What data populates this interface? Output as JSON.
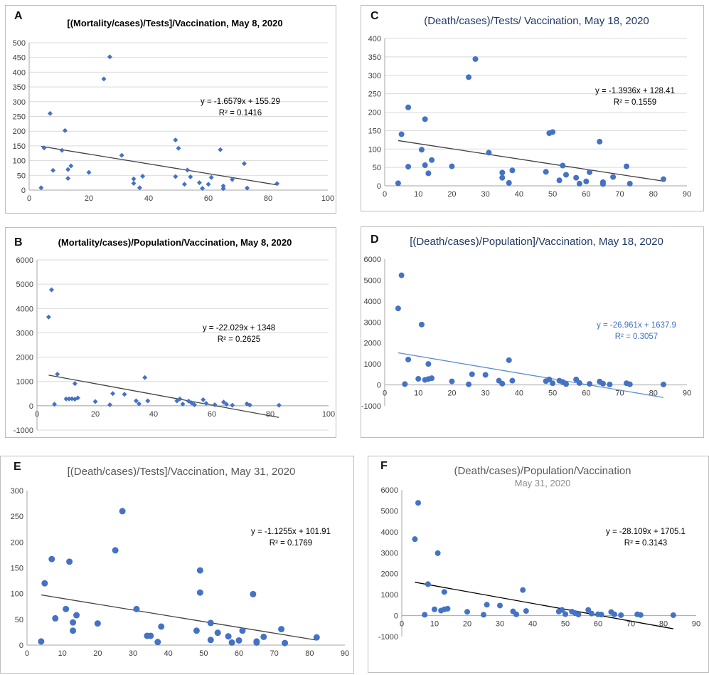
{
  "chart_data": [
    {
      "id": "A",
      "panel_letter": "A",
      "type": "scatter",
      "title": "[(Mortality/cases)/Tests]/Vaccination, May 8, 2020",
      "title_style": "bold",
      "title_color": "#000000",
      "marker": "diamond",
      "point_color": "#4472C4",
      "trend_color": "#404040",
      "xlim": [
        0,
        100
      ],
      "xticks": [
        0,
        20,
        40,
        60,
        80,
        100
      ],
      "ylim": [
        0,
        500
      ],
      "yticks": [
        0,
        50,
        100,
        150,
        200,
        250,
        300,
        350,
        400,
        450,
        500
      ],
      "grid": true,
      "annotation_color": "#000000",
      "equation": "y = -1.6579x + 155.29",
      "r2": "R² = 0.1416",
      "trendline": {
        "slope": -1.6579,
        "intercept": 155.29,
        "x_range": [
          4,
          83
        ]
      },
      "points": [
        [
          4,
          8
        ],
        [
          5,
          143
        ],
        [
          7,
          260
        ],
        [
          8,
          67
        ],
        [
          11,
          135
        ],
        [
          12,
          202
        ],
        [
          13,
          70
        ],
        [
          13,
          40
        ],
        [
          14,
          82
        ],
        [
          20,
          60
        ],
        [
          25,
          377
        ],
        [
          27,
          452
        ],
        [
          31,
          118
        ],
        [
          35,
          23
        ],
        [
          35,
          38
        ],
        [
          37,
          8
        ],
        [
          38,
          47
        ],
        [
          49,
          46
        ],
        [
          49,
          170
        ],
        [
          50,
          142
        ],
        [
          52,
          20
        ],
        [
          53,
          68
        ],
        [
          54,
          45
        ],
        [
          57,
          25
        ],
        [
          58,
          6
        ],
        [
          60,
          20
        ],
        [
          61,
          43
        ],
        [
          64,
          137
        ],
        [
          65,
          14
        ],
        [
          65,
          5
        ],
        [
          68,
          36
        ],
        [
          72,
          90
        ],
        [
          73,
          7
        ],
        [
          83,
          22
        ]
      ]
    },
    {
      "id": "B",
      "panel_letter": "B",
      "type": "scatter",
      "title": "(Mortality/cases)/Population/Vaccination, May 8, 2020",
      "title_style": "bold",
      "title_color": "#000000",
      "marker": "diamond",
      "point_color": "#4472C4",
      "trend_color": "#404040",
      "xlim": [
        0,
        100
      ],
      "xticks": [
        0,
        20,
        40,
        60,
        80,
        100
      ],
      "ylim": [
        -1000,
        6000
      ],
      "yticks": [
        -1000,
        0,
        1000,
        2000,
        3000,
        4000,
        5000,
        6000
      ],
      "grid": true,
      "annotation_color": "#000000",
      "equation": "y = -22.029x + 1348",
      "r2": "R² = 0.2625",
      "trendline": {
        "slope": -22.029,
        "intercept": 1348,
        "x_range": [
          4,
          83
        ]
      },
      "points": [
        [
          4,
          3650
        ],
        [
          5,
          4770
        ],
        [
          6,
          60
        ],
        [
          7,
          1300
        ],
        [
          10,
          280
        ],
        [
          11,
          280
        ],
        [
          12,
          290
        ],
        [
          13,
          910
        ],
        [
          13,
          270
        ],
        [
          14,
          320
        ],
        [
          20,
          170
        ],
        [
          25,
          40
        ],
        [
          26,
          500
        ],
        [
          30,
          470
        ],
        [
          34,
          200
        ],
        [
          35,
          80
        ],
        [
          37,
          1160
        ],
        [
          38,
          200
        ],
        [
          48,
          200
        ],
        [
          49,
          280
        ],
        [
          50,
          70
        ],
        [
          52,
          190
        ],
        [
          53,
          120
        ],
        [
          54,
          40
        ],
        [
          57,
          250
        ],
        [
          58,
          100
        ],
        [
          61,
          40
        ],
        [
          64,
          150
        ],
        [
          65,
          60
        ],
        [
          67,
          20
        ],
        [
          72,
          80
        ],
        [
          73,
          30
        ],
        [
          83,
          20
        ]
      ]
    },
    {
      "id": "C",
      "panel_letter": "C",
      "type": "scatter",
      "title": "(Death/cases)/Tests/ Vaccination, May 18, 2020",
      "title_style": "normal",
      "title_color": "#1F3864",
      "marker": "circle",
      "point_color": "#4472C4",
      "trend_color": "#404040",
      "xlim": [
        0,
        90
      ],
      "xticks": [
        0,
        10,
        20,
        30,
        40,
        50,
        60,
        70,
        80,
        90
      ],
      "ylim": [
        0,
        400
      ],
      "yticks": [
        0,
        50,
        100,
        150,
        200,
        250,
        300,
        350,
        400
      ],
      "grid": true,
      "annotation_color": "#000000",
      "equation": "y = -1.3936x + 128.41",
      "r2": "R² = 0.1559",
      "trendline": {
        "slope": -1.3936,
        "intercept": 128.41,
        "x_range": [
          4,
          83
        ]
      },
      "points": [
        [
          4,
          7
        ],
        [
          5,
          140
        ],
        [
          7,
          213
        ],
        [
          7,
          52
        ],
        [
          11,
          98
        ],
        [
          12,
          181
        ],
        [
          12,
          56
        ],
        [
          13,
          34
        ],
        [
          14,
          70
        ],
        [
          20,
          53
        ],
        [
          25,
          295
        ],
        [
          27,
          344
        ],
        [
          31,
          90
        ],
        [
          35,
          22
        ],
        [
          35,
          36
        ],
        [
          37,
          8
        ],
        [
          38,
          42
        ],
        [
          48,
          38
        ],
        [
          49,
          143
        ],
        [
          50,
          146
        ],
        [
          52,
          15
        ],
        [
          53,
          55
        ],
        [
          54,
          30
        ],
        [
          57,
          22
        ],
        [
          58,
          6
        ],
        [
          60,
          12
        ],
        [
          61,
          37
        ],
        [
          64,
          120
        ],
        [
          65,
          10
        ],
        [
          65,
          5
        ],
        [
          68,
          24
        ],
        [
          72,
          53
        ],
        [
          73,
          6
        ],
        [
          83,
          18
        ]
      ]
    },
    {
      "id": "D",
      "panel_letter": "D",
      "type": "scatter",
      "title": "[(Death/cases)/Population]/Vaccination, May 18, 2020",
      "title_style": "normal",
      "title_color": "#1F3864",
      "marker": "circle",
      "point_color": "#4472C4",
      "trend_color": "#5B8FD0",
      "xlim": [
        0,
        90
      ],
      "xticks": [
        0,
        10,
        20,
        30,
        40,
        50,
        60,
        70,
        80,
        90
      ],
      "ylim": [
        -1000,
        6000
      ],
      "yticks": [
        -1000,
        0,
        1000,
        2000,
        3000,
        4000,
        5000,
        6000
      ],
      "grid": false,
      "annotation_color": "#4472C4",
      "equation": "y = -26.961x + 1637.9",
      "r2": "R² = 0.3057",
      "trendline": {
        "slope": -26.961,
        "intercept": 1637.9,
        "x_range": [
          4,
          83
        ]
      },
      "points": [
        [
          4,
          3650
        ],
        [
          5,
          5230
        ],
        [
          6,
          40
        ],
        [
          7,
          1210
        ],
        [
          10,
          290
        ],
        [
          11,
          2880
        ],
        [
          12,
          240
        ],
        [
          13,
          1000
        ],
        [
          13,
          280
        ],
        [
          14,
          320
        ],
        [
          20,
          170
        ],
        [
          25,
          30
        ],
        [
          26,
          510
        ],
        [
          30,
          480
        ],
        [
          34,
          200
        ],
        [
          35,
          60
        ],
        [
          37,
          1180
        ],
        [
          38,
          200
        ],
        [
          48,
          180
        ],
        [
          49,
          260
        ],
        [
          50,
          80
        ],
        [
          52,
          200
        ],
        [
          53,
          140
        ],
        [
          54,
          40
        ],
        [
          57,
          260
        ],
        [
          58,
          90
        ],
        [
          61,
          50
        ],
        [
          64,
          160
        ],
        [
          65,
          60
        ],
        [
          67,
          20
        ],
        [
          72,
          80
        ],
        [
          73,
          30
        ],
        [
          83,
          20
        ]
      ]
    },
    {
      "id": "E",
      "panel_letter": "E",
      "type": "scatter",
      "title": "[(Death/cases)/Tests]/Vaccination, May 31, 2020",
      "title_style": "normal",
      "title_color": "#595959",
      "marker": "circle",
      "point_color": "#4472C4",
      "trend_color": "#404040",
      "xlim": [
        0,
        90
      ],
      "xticks": [
        0,
        10,
        20,
        30,
        40,
        50,
        60,
        70,
        80,
        90
      ],
      "ylim": [
        0,
        300
      ],
      "yticks": [
        0,
        50,
        100,
        150,
        200,
        250,
        300
      ],
      "grid": false,
      "annotation_color": "#000000",
      "equation": "y = -1.1255x + 101.91",
      "r2": "R² = 0.1769",
      "trendline": {
        "slope": -1.1255,
        "intercept": 101.91,
        "x_range": [
          4,
          82
        ]
      },
      "points": [
        [
          4,
          7
        ],
        [
          5,
          120
        ],
        [
          7,
          167
        ],
        [
          8,
          52
        ],
        [
          11,
          70
        ],
        [
          12,
          162
        ],
        [
          13,
          44
        ],
        [
          13,
          28
        ],
        [
          14,
          58
        ],
        [
          20,
          42
        ],
        [
          25,
          184
        ],
        [
          27,
          260
        ],
        [
          31,
          70
        ],
        [
          34,
          18
        ],
        [
          35,
          18
        ],
        [
          37,
          6
        ],
        [
          38,
          36
        ],
        [
          48,
          28
        ],
        [
          49,
          102
        ],
        [
          49,
          145
        ],
        [
          52,
          10
        ],
        [
          52,
          43
        ],
        [
          54,
          24
        ],
        [
          57,
          17
        ],
        [
          58,
          5
        ],
        [
          60,
          9
        ],
        [
          61,
          28
        ],
        [
          64,
          99
        ],
        [
          65,
          7
        ],
        [
          65,
          5
        ],
        [
          67,
          16
        ],
        [
          72,
          31
        ],
        [
          73,
          4
        ],
        [
          82,
          15
        ]
      ]
    },
    {
      "id": "F",
      "panel_letter": "F",
      "type": "scatter",
      "title": "(Death/cases)/Population/Vaccination",
      "subtitle": "May 31, 2020",
      "title_style": "normal",
      "title_color": "#595959",
      "marker": "circle",
      "point_color": "#4472C4",
      "trend_color": "#000000",
      "xlim": [
        0,
        90
      ],
      "xticks": [
        0,
        10,
        20,
        30,
        40,
        50,
        60,
        70,
        80,
        90
      ],
      "ylim": [
        -1000,
        6000
      ],
      "yticks": [
        -1000,
        0,
        1000,
        2000,
        3000,
        4000,
        5000,
        6000
      ],
      "grid": false,
      "annotation_color": "#000000",
      "equation": "y = -28.109x + 1705.1",
      "r2": "R² = 0.3143",
      "trendline": {
        "slope": -28.109,
        "intercept": 1705.1,
        "x_range": [
          4,
          83
        ]
      },
      "points": [
        [
          4,
          3650
        ],
        [
          5,
          5380
        ],
        [
          7,
          40
        ],
        [
          8,
          1500
        ],
        [
          10,
          300
        ],
        [
          11,
          2980
        ],
        [
          12,
          240
        ],
        [
          13,
          1130
        ],
        [
          13,
          300
        ],
        [
          14,
          330
        ],
        [
          20,
          180
        ],
        [
          25,
          40
        ],
        [
          26,
          520
        ],
        [
          30,
          480
        ],
        [
          34,
          200
        ],
        [
          35,
          60
        ],
        [
          37,
          1220
        ],
        [
          38,
          220
        ],
        [
          48,
          190
        ],
        [
          49,
          270
        ],
        [
          50,
          70
        ],
        [
          52,
          190
        ],
        [
          53,
          120
        ],
        [
          54,
          50
        ],
        [
          57,
          270
        ],
        [
          58,
          100
        ],
        [
          60,
          60
        ],
        [
          61,
          50
        ],
        [
          64,
          170
        ],
        [
          65,
          60
        ],
        [
          67,
          20
        ],
        [
          72,
          60
        ],
        [
          73,
          30
        ],
        [
          83,
          20
        ]
      ]
    }
  ]
}
